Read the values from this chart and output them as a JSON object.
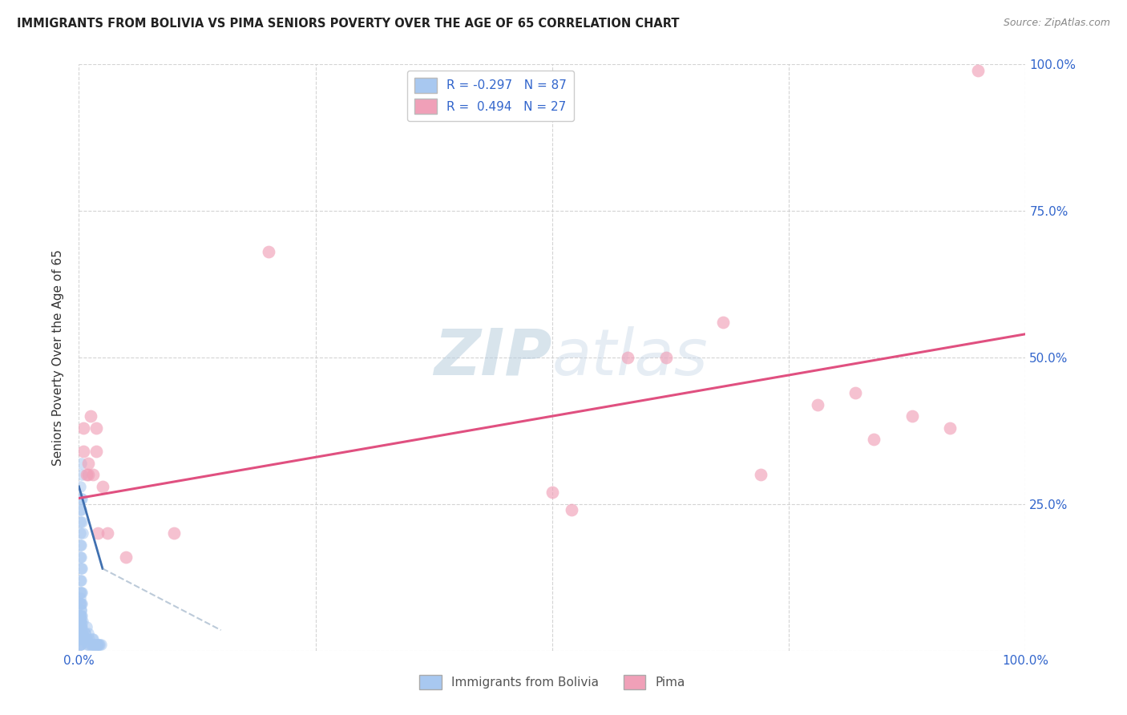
{
  "title": "IMMIGRANTS FROM BOLIVIA VS PIMA SENIORS POVERTY OVER THE AGE OF 65 CORRELATION CHART",
  "source": "Source: ZipAtlas.com",
  "ylabel": "Seniors Poverty Over the Age of 65",
  "bolivia_color": "#a8c8f0",
  "bolivia_edge_color": "#7090d0",
  "pima_color": "#f0a0b8",
  "pima_edge_color": "#d06080",
  "bolivia_line_color": "#4070b0",
  "bolivia_line_dash_color": "#90a8c0",
  "pima_line_color": "#e05080",
  "watermark_color": "#ccdcec",
  "xlim": [
    0.0,
    1.0
  ],
  "ylim": [
    0.0,
    1.0
  ],
  "bolivia_points": [
    [
      0.001,
      0.28
    ],
    [
      0.002,
      0.26
    ],
    [
      0.003,
      0.3
    ],
    [
      0.002,
      0.32
    ],
    [
      0.001,
      0.22
    ],
    [
      0.003,
      0.26
    ],
    [
      0.002,
      0.24
    ],
    [
      0.001,
      0.2
    ],
    [
      0.003,
      0.22
    ],
    [
      0.002,
      0.18
    ],
    [
      0.001,
      0.24
    ],
    [
      0.004,
      0.2
    ],
    [
      0.001,
      0.16
    ],
    [
      0.002,
      0.14
    ],
    [
      0.001,
      0.12
    ],
    [
      0.002,
      0.1
    ],
    [
      0.003,
      0.14
    ],
    [
      0.001,
      0.18
    ],
    [
      0.002,
      0.16
    ],
    [
      0.001,
      0.08
    ],
    [
      0.002,
      0.06
    ],
    [
      0.001,
      0.04
    ],
    [
      0.002,
      0.04
    ],
    [
      0.001,
      0.06
    ],
    [
      0.003,
      0.08
    ],
    [
      0.001,
      0.1
    ],
    [
      0.002,
      0.12
    ],
    [
      0.003,
      0.1
    ],
    [
      0.001,
      0.02
    ],
    [
      0.001,
      0.03
    ],
    [
      0.001,
      0.01
    ],
    [
      0.002,
      0.02
    ],
    [
      0.001,
      0.05
    ],
    [
      0.002,
      0.07
    ],
    [
      0.001,
      0.09
    ],
    [
      0.002,
      0.08
    ],
    [
      0.001,
      0.06
    ],
    [
      0.002,
      0.05
    ],
    [
      0.001,
      0.03
    ],
    [
      0.002,
      0.04
    ],
    [
      0.001,
      0.02
    ],
    [
      0.001,
      0.01
    ],
    [
      0.002,
      0.02
    ],
    [
      0.001,
      0.01
    ],
    [
      0.002,
      0.01
    ],
    [
      0.001,
      0.02
    ],
    [
      0.001,
      0.03
    ],
    [
      0.002,
      0.03
    ],
    [
      0.003,
      0.02
    ],
    [
      0.001,
      0.04
    ],
    [
      0.002,
      0.05
    ],
    [
      0.001,
      0.06
    ],
    [
      0.002,
      0.07
    ],
    [
      0.001,
      0.08
    ],
    [
      0.003,
      0.06
    ],
    [
      0.004,
      0.05
    ],
    [
      0.001,
      0.04
    ],
    [
      0.002,
      0.03
    ],
    [
      0.003,
      0.04
    ],
    [
      0.004,
      0.03
    ],
    [
      0.005,
      0.02
    ],
    [
      0.006,
      0.03
    ],
    [
      0.007,
      0.02
    ],
    [
      0.008,
      0.02
    ],
    [
      0.009,
      0.01
    ],
    [
      0.01,
      0.01
    ],
    [
      0.011,
      0.02
    ],
    [
      0.012,
      0.01
    ],
    [
      0.013,
      0.01
    ],
    [
      0.014,
      0.02
    ],
    [
      0.015,
      0.01
    ],
    [
      0.016,
      0.01
    ],
    [
      0.017,
      0.01
    ],
    [
      0.018,
      0.01
    ],
    [
      0.019,
      0.01
    ],
    [
      0.02,
      0.01
    ],
    [
      0.021,
      0.01
    ],
    [
      0.022,
      0.01
    ],
    [
      0.023,
      0.01
    ],
    [
      0.015,
      0.02
    ],
    [
      0.01,
      0.03
    ],
    [
      0.008,
      0.04
    ],
    [
      0.006,
      0.03
    ],
    [
      0.004,
      0.02
    ],
    [
      0.003,
      0.03
    ],
    [
      0.002,
      0.04
    ],
    [
      0.001,
      0.05
    ]
  ],
  "pima_points": [
    [
      0.005,
      0.38
    ],
    [
      0.005,
      0.34
    ],
    [
      0.008,
      0.3
    ],
    [
      0.01,
      0.3
    ],
    [
      0.01,
      0.32
    ],
    [
      0.012,
      0.4
    ],
    [
      0.015,
      0.3
    ],
    [
      0.018,
      0.38
    ],
    [
      0.018,
      0.34
    ],
    [
      0.02,
      0.2
    ],
    [
      0.025,
      0.28
    ],
    [
      0.03,
      0.2
    ],
    [
      0.05,
      0.16
    ],
    [
      0.1,
      0.2
    ],
    [
      0.5,
      0.27
    ],
    [
      0.52,
      0.24
    ],
    [
      0.58,
      0.5
    ],
    [
      0.62,
      0.5
    ],
    [
      0.68,
      0.56
    ],
    [
      0.72,
      0.3
    ],
    [
      0.78,
      0.42
    ],
    [
      0.82,
      0.44
    ],
    [
      0.84,
      0.36
    ],
    [
      0.88,
      0.4
    ],
    [
      0.92,
      0.38
    ],
    [
      0.95,
      0.99
    ],
    [
      0.2,
      0.68
    ]
  ],
  "bolivia_line": {
    "x0": 0.0,
    "x1": 0.025,
    "y0": 0.28,
    "y1": 0.14
  },
  "bolivia_dash_line": {
    "x0": 0.025,
    "x1": 0.15,
    "y0": 0.14,
    "y1": 0.035
  },
  "pima_line": {
    "x0": 0.0,
    "x1": 1.0,
    "y0": 0.26,
    "y1": 0.54
  }
}
